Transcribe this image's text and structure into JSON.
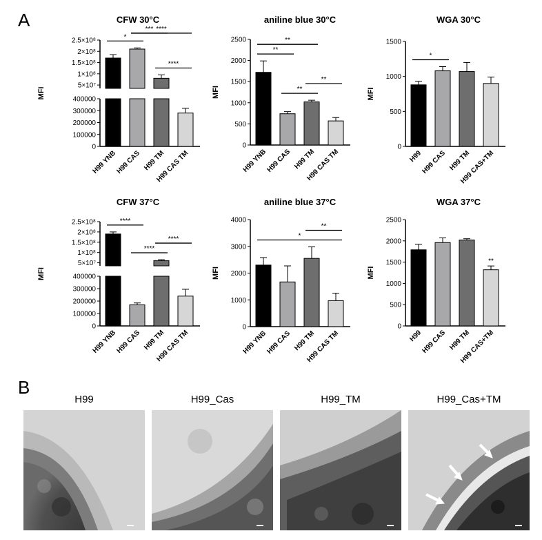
{
  "panel_a_label": "A",
  "panel_b_label": "B",
  "em_labels": [
    "H99",
    "H99_Cas",
    "H99_TM",
    "H99_Cas+TM"
  ],
  "colors": [
    "#000000",
    "#a8a8ab",
    "#6e6e6e",
    "#d6d6d6"
  ],
  "chart_data": [
    {
      "type": "bar",
      "title": "CFW 30°C",
      "ylabel": "MFI",
      "categories": [
        "H99 YNB",
        "H99 CAS",
        "H99 TM",
        "H99 CAS TM"
      ],
      "values": [
        170000000,
        210000000,
        80000000,
        280000
      ],
      "errors": [
        15000000,
        5000000,
        15000000,
        40000
      ],
      "axis_break": true,
      "yticks_lower": [
        "0",
        "100000",
        "200000",
        "300000",
        "400000"
      ],
      "yticks_upper": [
        "5×10⁷",
        "1×10⁸",
        "1.5×10⁸",
        "2×10⁸",
        "2.5×10⁸"
      ],
      "significance": [
        {
          "from": 0,
          "to": 1,
          "label": "*"
        },
        {
          "from": 1,
          "to": 2,
          "label": "***"
        },
        {
          "from": 1,
          "to": 3,
          "label": "****"
        },
        {
          "from": 2,
          "to": 3,
          "label": "****"
        }
      ]
    },
    {
      "type": "bar",
      "title": "aniline blue 30°C",
      "ylabel": "MFI",
      "categories": [
        "H99 YNB",
        "H99 CAS",
        "H99 TM",
        "H99 CAS TM"
      ],
      "values": [
        1720,
        740,
        1020,
        570
      ],
      "errors": [
        270,
        50,
        40,
        80
      ],
      "ylim": [
        0,
        2500
      ],
      "yticks": [
        0,
        500,
        1000,
        1500,
        2000,
        2500
      ],
      "significance": [
        {
          "from": 0,
          "to": 1,
          "label": "**"
        },
        {
          "from": 0,
          "to": 2,
          "label": "**"
        },
        {
          "from": 1,
          "to": 2,
          "label": "**"
        },
        {
          "from": 2,
          "to": 3,
          "label": "**"
        }
      ]
    },
    {
      "type": "bar",
      "title": "WGA 30°C",
      "ylabel": "MFI",
      "categories": [
        "H99",
        "H99 CAS",
        "H99 TM",
        "H99 CAS+TM"
      ],
      "values": [
        880,
        1080,
        1070,
        900
      ],
      "errors": [
        50,
        60,
        130,
        90
      ],
      "ylim": [
        0,
        1500
      ],
      "yticks": [
        0,
        500,
        1000,
        1500
      ],
      "significance": [
        {
          "from": 0,
          "to": 1,
          "label": "*"
        }
      ]
    },
    {
      "type": "bar",
      "title": "CFW 37°C",
      "ylabel": "MFI",
      "categories": [
        "H99 YNB",
        "H99 CAS",
        "H99 TM",
        "H99 CAS TM"
      ],
      "values": [
        190000000,
        170000,
        60000000,
        240000
      ],
      "errors": [
        10000000,
        15000,
        5000000,
        55000
      ],
      "axis_break": true,
      "yticks_lower": [
        "0",
        "100000",
        "200000",
        "300000",
        "400000"
      ],
      "yticks_upper": [
        "5×10⁷",
        "1×10⁸",
        "1.5×10⁸",
        "2×10⁸",
        "2.5×10⁸"
      ],
      "significance": [
        {
          "from": 0,
          "to": 1,
          "label": "****"
        },
        {
          "from": 1,
          "to": 2,
          "label": "****"
        },
        {
          "from": 2,
          "to": 3,
          "label": "****"
        }
      ]
    },
    {
      "type": "bar",
      "title": "aniline blue 37°C",
      "ylabel": "MFI",
      "categories": [
        "H99 YNB",
        "H99 CAS",
        "H99 TM",
        "H99 CAS TM"
      ],
      "values": [
        2300,
        1670,
        2550,
        970
      ],
      "errors": [
        280,
        600,
        430,
        280
      ],
      "ylim": [
        0,
        4000
      ],
      "yticks": [
        0,
        1000,
        2000,
        3000,
        4000
      ],
      "significance": [
        {
          "from": 0,
          "to": 3,
          "label": "*"
        },
        {
          "from": 2,
          "to": 3,
          "label": "**"
        }
      ]
    },
    {
      "type": "bar",
      "title": "WGA 37°C",
      "ylabel": "MFI",
      "categories": [
        "H99",
        "H99 CAS",
        "H99 TM",
        "H99 CAS+TM"
      ],
      "values": [
        1790,
        1960,
        2020,
        1320
      ],
      "errors": [
        130,
        110,
        30,
        90
      ],
      "ylim": [
        0,
        2500
      ],
      "yticks": [
        0,
        500,
        1000,
        1500,
        2000,
        2500
      ],
      "significance": [],
      "annotations": [
        {
          "index": 3,
          "label": "**"
        }
      ]
    }
  ]
}
